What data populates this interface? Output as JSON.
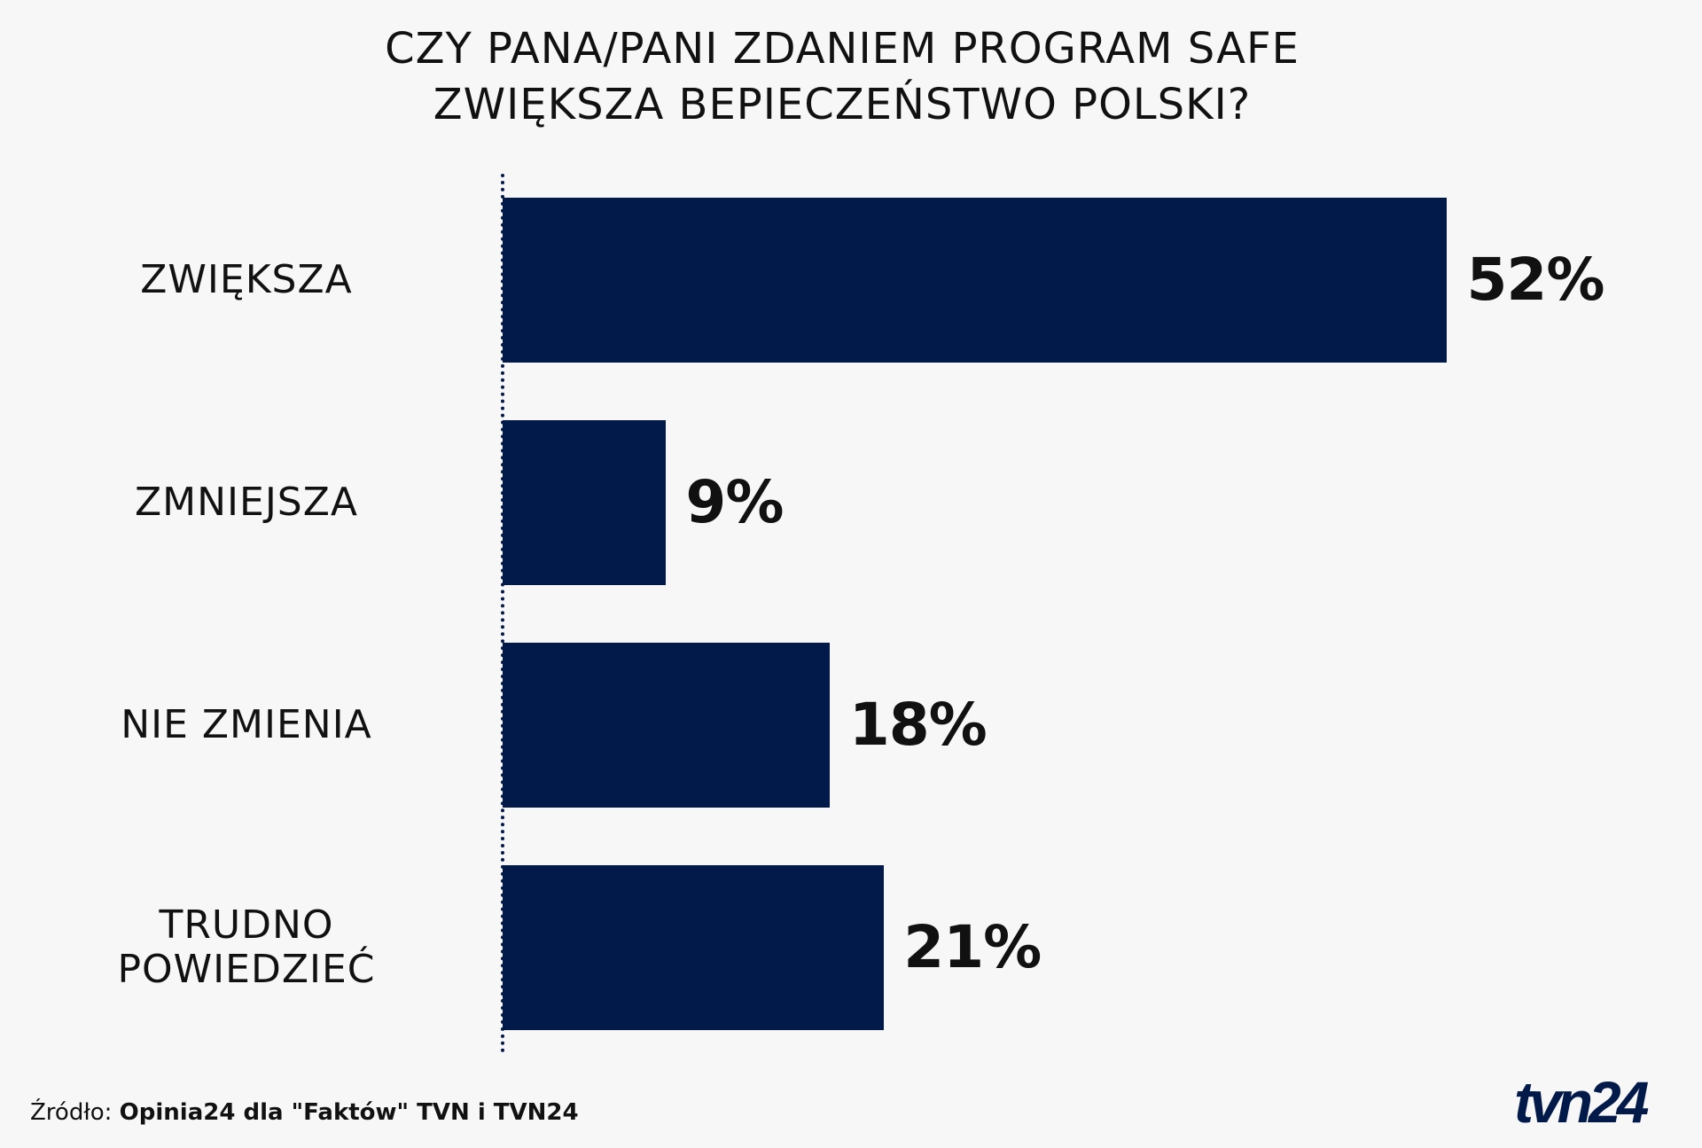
{
  "chart_data": {
    "type": "bar",
    "orientation": "horizontal",
    "title_lines": [
      "CZY PANA/PANI ZDANIEM PROGRAM SAFE",
      "ZWIĘKSZA BEPIECZEŃSTWO POLSKI?"
    ],
    "categories": [
      "ZWIĘKSZA",
      "ZMNIEJSZA",
      "NIE ZMIENIA",
      "TRUDNO POWIEDZIEĆ"
    ],
    "category_lines": [
      [
        "ZWIĘKSZA"
      ],
      [
        "ZMNIEJSZA"
      ],
      [
        "NIE ZMIENIA"
      ],
      [
        "TRUDNO",
        "POWIEDZIEĆ"
      ]
    ],
    "values": [
      52,
      9,
      18,
      21
    ],
    "data_labels": [
      "52%",
      "9%",
      "18%",
      "21%"
    ],
    "unit": "%",
    "bar_color": "#021a4a",
    "background": "#f7f7f7",
    "grid": false
  },
  "footer": {
    "source_label": "Źródło:",
    "source_text": "Opinia24 dla \"Faktów\" TVN i TVN24"
  },
  "logo": {
    "text": "tvn24"
  }
}
